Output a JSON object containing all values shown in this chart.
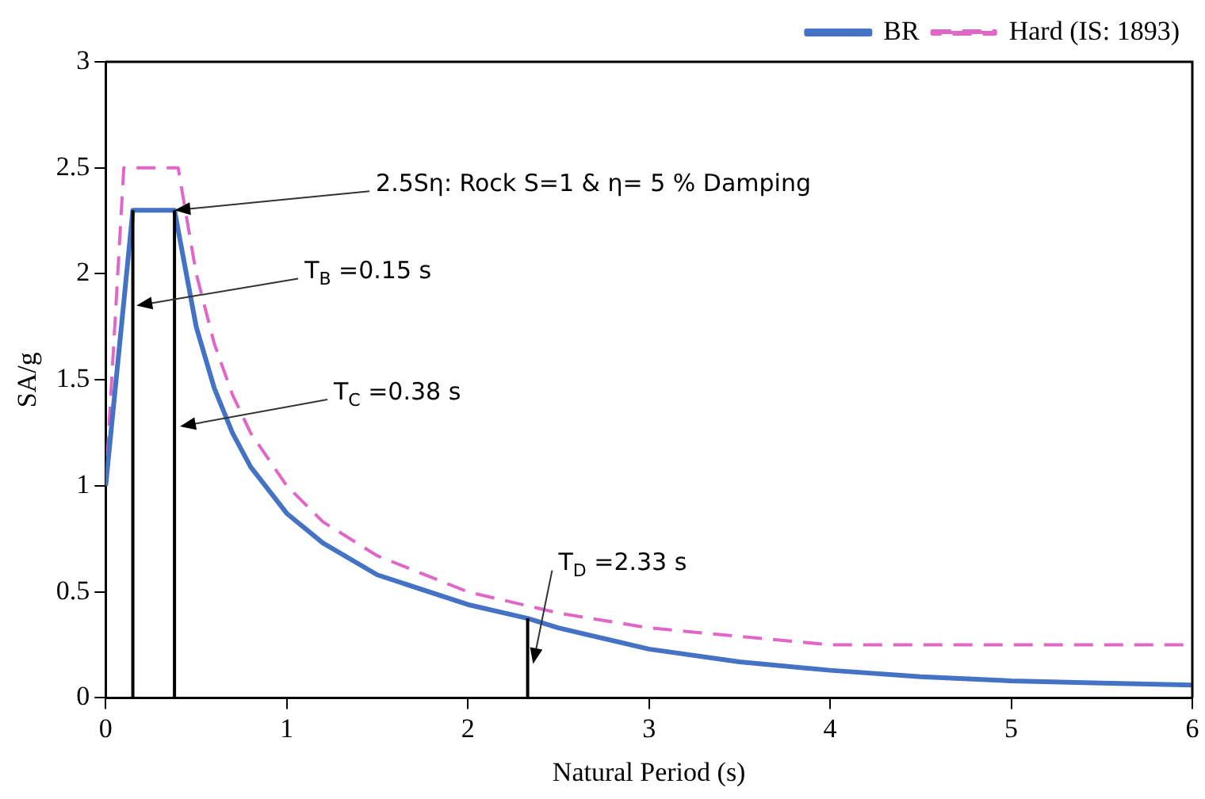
{
  "chart_data": {
    "type": "line",
    "xlabel": "Natural Period (s)",
    "ylabel": "SA/g",
    "xlim": [
      0,
      6
    ],
    "xticks": [
      0,
      1,
      2,
      3,
      4,
      5,
      6
    ],
    "ylim": [
      0,
      3
    ],
    "yticks": [
      0,
      0.5,
      1,
      1.5,
      2,
      2.5,
      3
    ],
    "grid": false,
    "legend": "top right",
    "marker": "none",
    "series": [
      {
        "name": "BR",
        "color": "#4472c4",
        "line_style": "solid",
        "x": [
          0,
          0.15,
          0.38,
          0.5,
          0.6,
          0.7,
          0.8,
          1,
          1.2,
          1.5,
          2,
          2.33,
          2.5,
          3,
          3.5,
          4,
          4.5,
          5,
          5.5,
          6
        ],
        "values": [
          1,
          2.3,
          2.3,
          1.75,
          1.46,
          1.25,
          1.09,
          0.87,
          0.73,
          0.58,
          0.44,
          0.375,
          0.33,
          0.23,
          0.17,
          0.13,
          0.1,
          0.08,
          0.07,
          0.06
        ]
      },
      {
        "name": "Hard (IS: 1893)",
        "color": "#e066c8",
        "line_style": "dashed",
        "x": [
          0,
          0.1,
          0.4,
          0.5,
          0.6,
          0.7,
          0.8,
          1,
          1.2,
          1.5,
          2,
          2.5,
          3,
          3.5,
          4,
          6
        ],
        "values": [
          1,
          2.5,
          2.5,
          2,
          1.67,
          1.43,
          1.25,
          1,
          0.83,
          0.67,
          0.5,
          0.4,
          0.33,
          0.29,
          0.25,
          0.25
        ]
      },
      {
        "color": "#000000",
        "line_style": "solid",
        "x": [
          0.15,
          0.15
        ],
        "values": [
          0,
          2.3
        ]
      },
      {
        "color": "#000000",
        "line_style": "solid",
        "x": [
          0.38,
          0.38
        ],
        "values": [
          0,
          2.3
        ]
      },
      {
        "color": "#000000",
        "line_style": "solid",
        "x": [
          2.33,
          2.33
        ],
        "values": [
          0,
          0.375
        ]
      }
    ],
    "annotations": [
      {
        "text": "2.5Sη: Rock S=1 & η= 5 % Damping",
        "x": 0.38,
        "y": 2.3
      },
      {
        "text": "T$_{B}$ =0.15 s",
        "x": 0.17,
        "y": 1.85
      },
      {
        "text": "T$_{C}$ =0.38 s",
        "x": 0.41,
        "y": 1.28
      },
      {
        "text": "T$_{D}$ =2.33 s",
        "x": 2.36,
        "y": 0.16
      }
    ]
  }
}
